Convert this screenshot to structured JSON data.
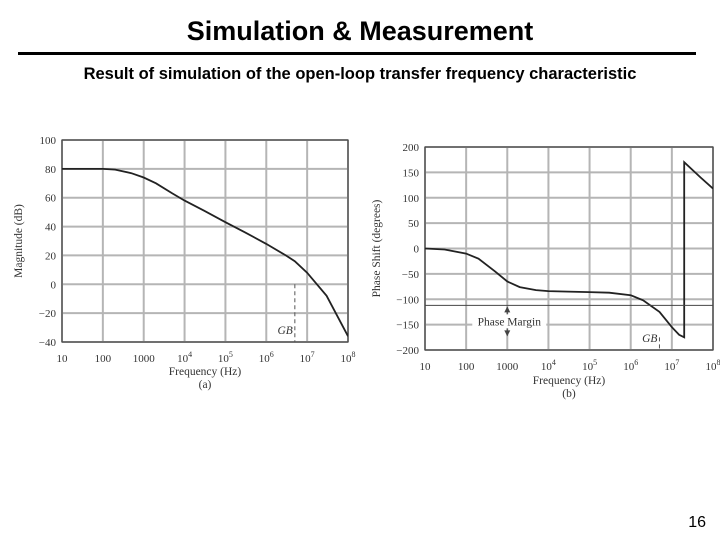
{
  "slide": {
    "title": "Simulation & Measurement",
    "subtitle": "Result of simulation of the open-loop transfer frequency characteristic",
    "page_number": "16"
  },
  "chart_data": [
    {
      "type": "line",
      "panel": "(a)",
      "xlabel": "Frequency (Hz)",
      "ylabel": "Magnitude (dB)",
      "x_scale": "log",
      "xlim": [
        10,
        100000000
      ],
      "ylim": [
        -40,
        100
      ],
      "x_ticks": [
        "10",
        "100",
        "1000",
        "10^4",
        "10^5",
        "10^6",
        "10^7",
        "10^8"
      ],
      "y_ticks": [
        "100",
        "80",
        "60",
        "40",
        "20",
        "0",
        "−20",
        "−40"
      ],
      "grid": true,
      "line_color": "#222222",
      "series": [
        {
          "x": [
            10,
            30,
            100,
            200,
            500,
            1000,
            2000,
            5000,
            10000,
            30000,
            100000,
            300000,
            1000000,
            3000000,
            5000000,
            10000000,
            30000000,
            100000000
          ],
          "y": [
            80,
            80,
            80,
            79.5,
            77,
            74,
            70,
            63,
            58,
            51,
            43,
            36,
            28,
            20,
            16,
            8,
            -8,
            -36
          ]
        }
      ],
      "annotations": [
        {
          "text": "GB",
          "x": 5000000,
          "y": 0,
          "style": "dashed-marker"
        }
      ]
    },
    {
      "type": "line",
      "panel": "(b)",
      "xlabel": "Frequency (Hz)",
      "ylabel": "Phase Shift (degrees)",
      "x_scale": "log",
      "xlim": [
        10,
        100000000
      ],
      "ylim": [
        -200,
        200
      ],
      "x_ticks": [
        "10",
        "100",
        "1000",
        "10^4",
        "10^5",
        "10^6",
        "10^7",
        "10^8"
      ],
      "y_ticks": [
        "200",
        "150",
        "100",
        "50",
        "0",
        "−50",
        "−100",
        "−150",
        "−200"
      ],
      "grid": true,
      "line_color": "#222222",
      "series": [
        {
          "x": [
            10,
            30,
            100,
            200,
            500,
            1000,
            2000,
            5000,
            10000,
            30000,
            100000,
            300000,
            1000000,
            2000000,
            5000000,
            10000000,
            15000000,
            20000000,
            20000001,
            50000000,
            100000000
          ],
          "y": [
            0,
            -2,
            -10,
            -20,
            -45,
            -65,
            -76,
            -82,
            -84,
            -85,
            -86,
            -87,
            -92,
            -102,
            -125,
            -155,
            -170,
            -175,
            170,
            140,
            118
          ]
        }
      ],
      "annotations": [
        {
          "text": "Phase Margin",
          "x": 1000,
          "y_from": -175,
          "y_to": -112,
          "style": "double-arrow"
        },
        {
          "text": "GB",
          "x": 5000000,
          "y": -175,
          "style": "dashed-marker"
        }
      ]
    }
  ]
}
